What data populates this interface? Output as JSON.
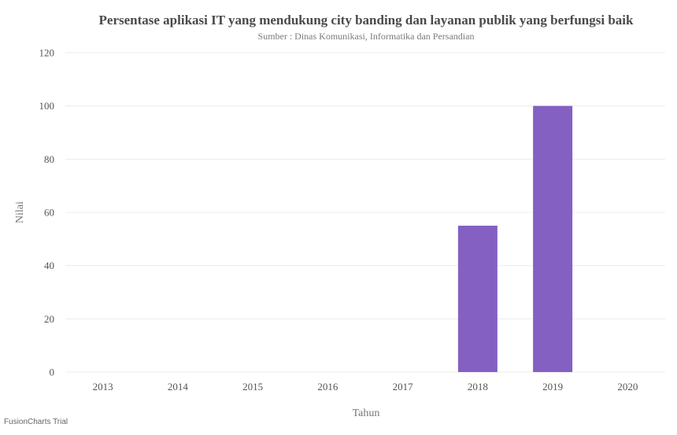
{
  "chart_data": {
    "type": "bar",
    "title": "Persentase aplikasi IT yang mendukung city banding dan layanan publik yang berfungsi baik",
    "subtitle": "Sumber : Dinas Komunikasi, Informatika dan Persandian",
    "xlabel": "Tahun",
    "ylabel": "Nilai",
    "categories": [
      "2013",
      "2014",
      "2015",
      "2016",
      "2017",
      "2018",
      "2019",
      "2020"
    ],
    "values": [
      0,
      0,
      0,
      0,
      0,
      55,
      100,
      0
    ],
    "ylim": [
      0,
      120
    ],
    "yticks": [
      0,
      20,
      40,
      60,
      80,
      100,
      120
    ],
    "grid": true,
    "bar_color": "#8460c2",
    "grid_color": "#ececec"
  },
  "watermark": "FusionCharts Trial"
}
